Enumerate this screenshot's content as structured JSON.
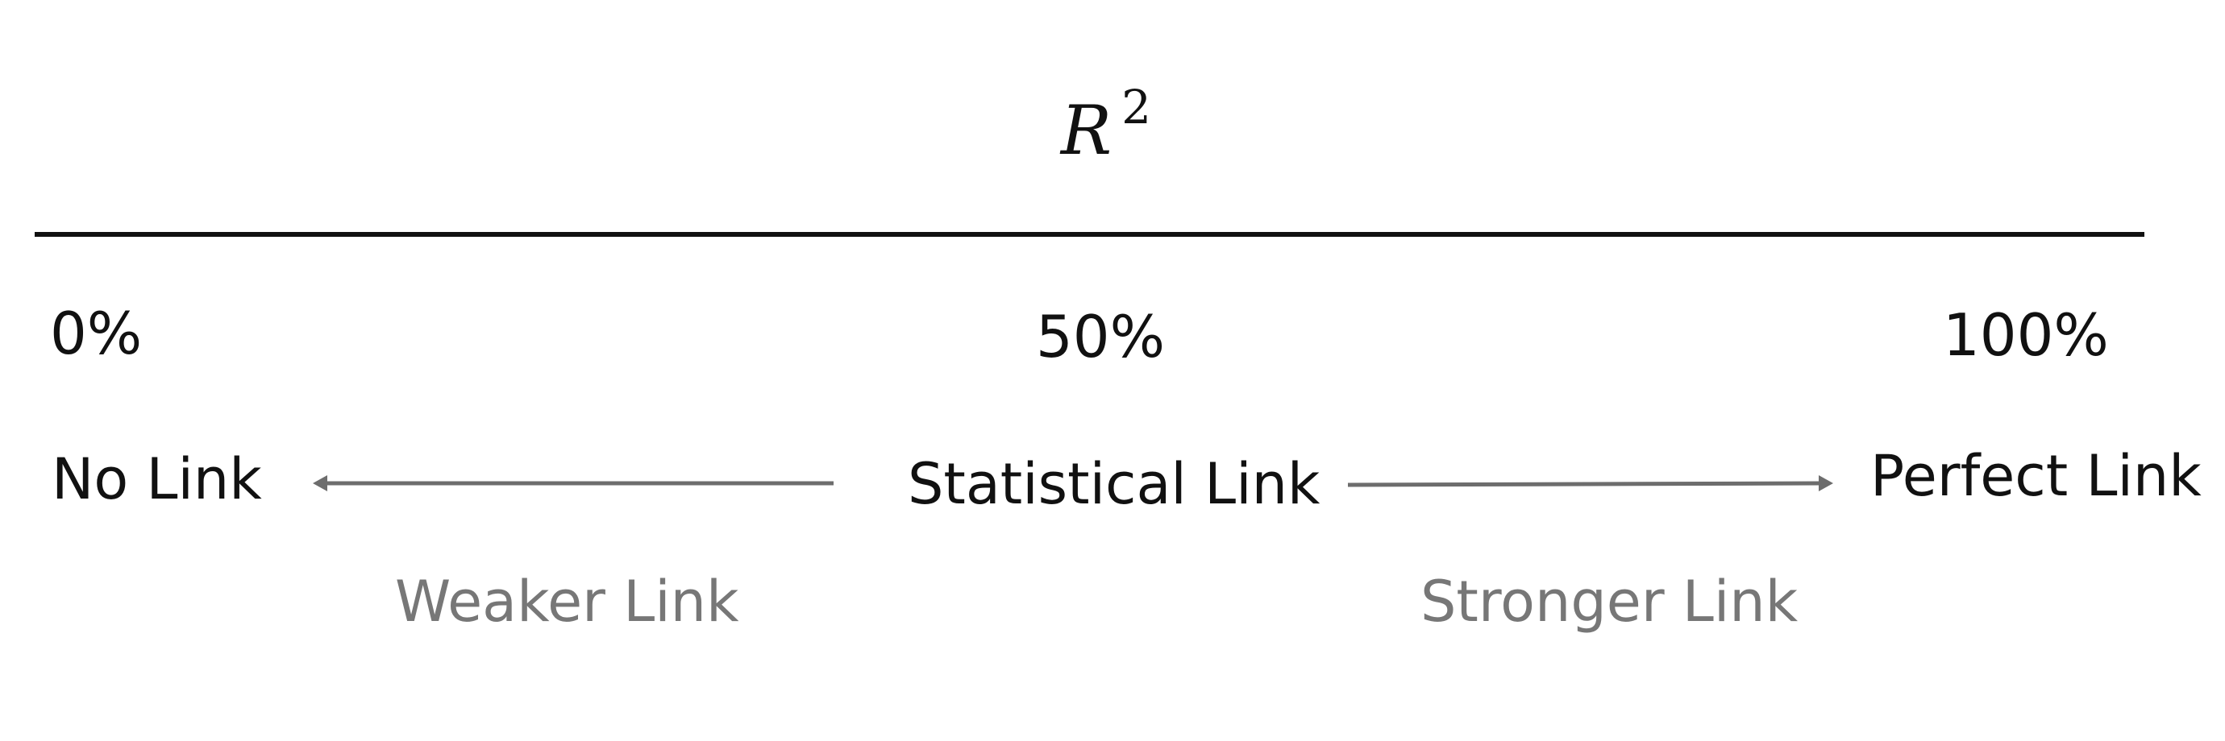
{
  "title": {
    "base": "R",
    "superscript": "2"
  },
  "scale": {
    "ticks": [
      {
        "value": "0%",
        "label": "No Link"
      },
      {
        "value": "50%",
        "label": "Statistical Link"
      },
      {
        "value": "100%",
        "label": "Perfect Link"
      }
    ],
    "directions": {
      "left": "Weaker Link",
      "right": "Stronger Link"
    }
  },
  "colors": {
    "text": "#111111",
    "muted": "#777777",
    "arrow": "#6d6d6d"
  }
}
